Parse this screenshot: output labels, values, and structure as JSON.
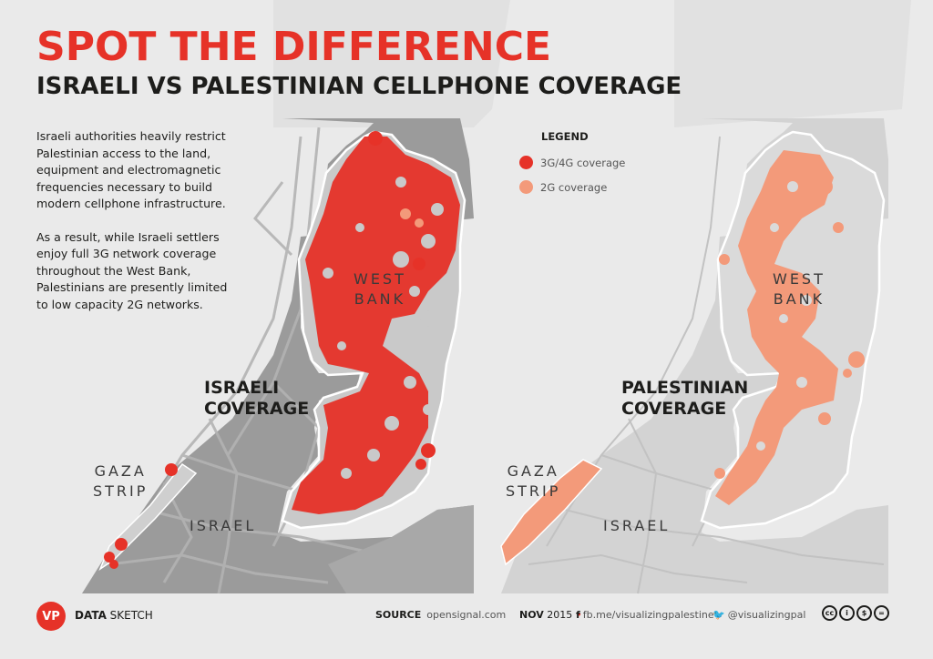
{
  "title": "SPOT THE DIFFERENCE",
  "subtitle": "ISRAELI VS PALESTINIAN CELLPHONE COVERAGE",
  "intro": [
    "Israeli authorities heavily restrict Palestinian access to the land, equipment and electromagnetic frequencies necessary to build modern cellphone infrastructure.",
    "As a result, while Israeli settlers enjoy full 3G network coverage throughout the West Bank, Palestinians are presently limited to low capacity 2G networks."
  ],
  "legend": {
    "title": "LEGEND",
    "items": [
      {
        "label": "3G/4G coverage",
        "color": "#e63228"
      },
      {
        "label": "2G coverage",
        "color": "#f39a7a"
      }
    ]
  },
  "maps": {
    "left": {
      "coverage_label": [
        "ISRAELI",
        "COVERAGE"
      ],
      "west_bank": [
        "WEST",
        "BANK"
      ],
      "gaza": [
        "GAZA",
        "STRIP"
      ],
      "israel": "ISRAEL"
    },
    "right": {
      "coverage_label": [
        "PALESTINIAN",
        "COVERAGE"
      ],
      "west_bank": [
        "WEST",
        "BANK"
      ],
      "gaza": [
        "GAZA",
        "STRIP"
      ],
      "israel": "ISRAEL"
    }
  },
  "colors": {
    "background": "#eaeaea",
    "land": "#d6d6d6",
    "israel_dark": "#9a9a9a",
    "red": "#e63228",
    "salmon": "#f39a7a"
  },
  "footer": {
    "logo": "VP",
    "brand_bold": "DATA",
    "brand_rest": " SKETCH",
    "source_label": "SOURCE",
    "source_value": "opensignal.com",
    "date_bold": "NOV",
    "date_rest": " 2015",
    "facebook": "fb.me/visualizingpalestine",
    "twitter": "@visualizingpal",
    "license_icons": [
      "cc",
      "by",
      "nc",
      "nd"
    ]
  }
}
